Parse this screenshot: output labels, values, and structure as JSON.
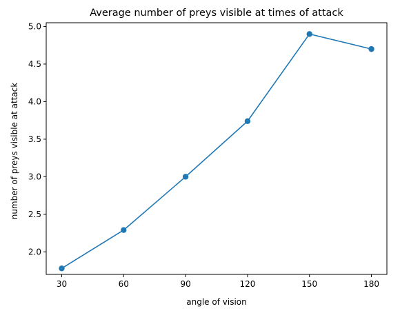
{
  "chart_data": {
    "type": "line",
    "title": "Average number of preys visible at times of attack",
    "xlabel": "angle of vision",
    "ylabel": "number of preys visible at attack",
    "x": [
      30,
      60,
      90,
      120,
      150,
      180
    ],
    "x_tick_labels": [
      "30",
      "60",
      "90",
      "120",
      "150",
      "180"
    ],
    "y_ticks": [
      2.0,
      2.5,
      3.0,
      3.5,
      4.0,
      4.5,
      5.0
    ],
    "y_tick_labels": [
      "2.0",
      "2.5",
      "3.0",
      "3.5",
      "4.0",
      "4.5",
      "5.0"
    ],
    "xlim": [
      22.5,
      187.5
    ],
    "ylim": [
      1.7,
      5.05
    ],
    "grid": false,
    "series": [
      {
        "values": [
          1.78,
          2.29,
          3.0,
          3.74,
          4.9,
          4.7
        ],
        "color": "#1f77b4",
        "marker": "circle"
      }
    ]
  }
}
